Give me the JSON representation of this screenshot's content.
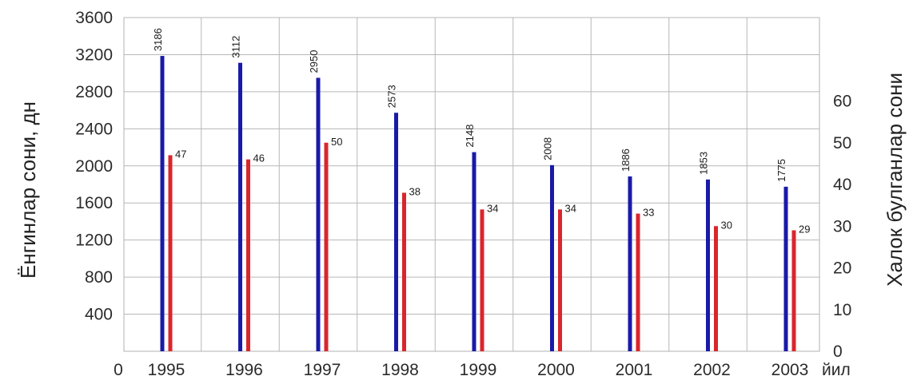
{
  "chart_data": {
    "type": "bar",
    "categories": [
      "1995",
      "1996",
      "1997",
      "1998",
      "1999",
      "2000",
      "2001",
      "2002",
      "2003"
    ],
    "x_origin_label": "0",
    "x_unit_suffix": "йил",
    "left_axis": {
      "label": "Ёнгинлар сони, дн",
      "ylim": [
        0,
        3600
      ],
      "ticks": [
        400,
        800,
        1200,
        1600,
        2000,
        2400,
        2800,
        3200,
        3600
      ]
    },
    "right_axis": {
      "label": "Халок булганлар сони",
      "ylim": [
        0,
        80
      ],
      "ticks": [
        0,
        10,
        20,
        30,
        40,
        50,
        60
      ]
    },
    "series": [
      {
        "values": [
          3186,
          3112,
          2950,
          2573,
          2148,
          2008,
          1886,
          1853,
          1775
        ],
        "color": "#1a1aa8",
        "axis": "left"
      },
      {
        "values": [
          47,
          46,
          50,
          38,
          34,
          34,
          33,
          30,
          29
        ],
        "color": "#d9262c",
        "axis": "right"
      }
    ],
    "grid": true,
    "legend": "none"
  }
}
